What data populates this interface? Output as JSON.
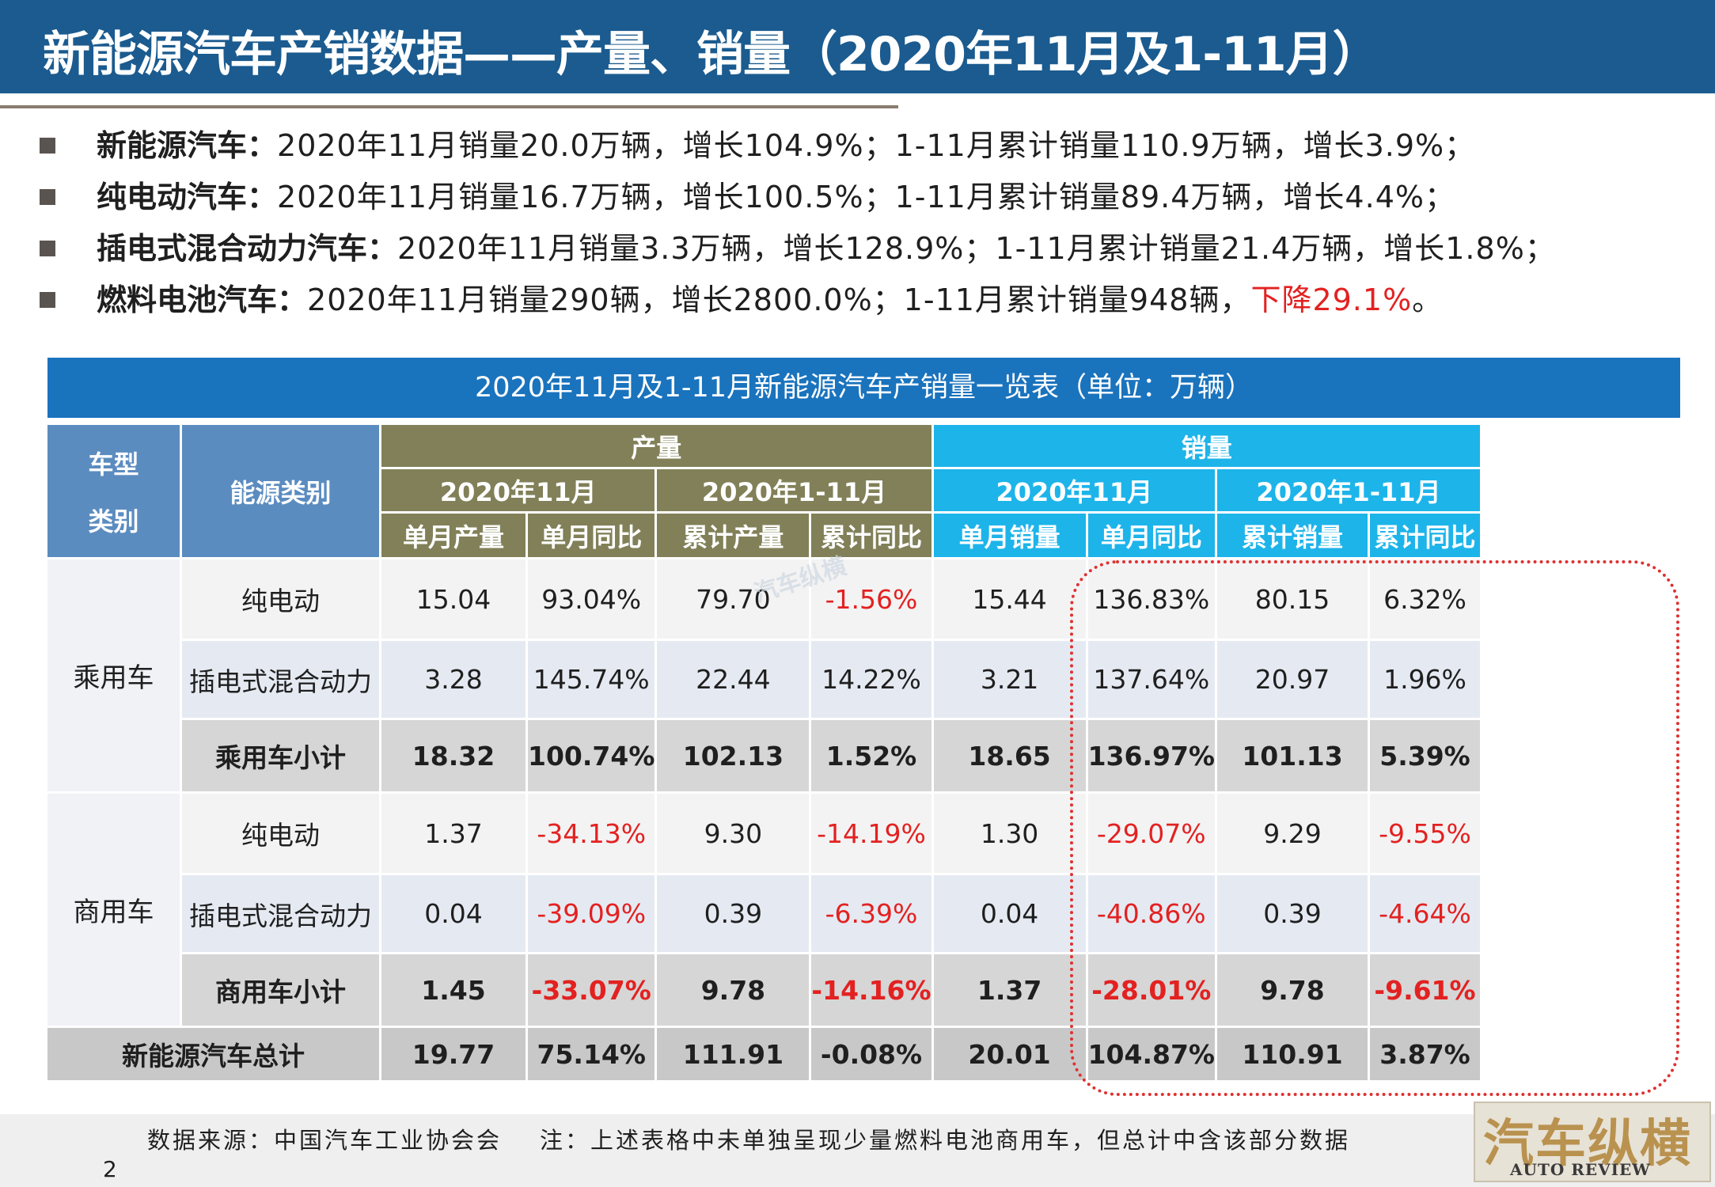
{
  "title": "新能源汽车产销数据——产量、销量（2020年11月及1-11月）",
  "bullets": [
    {
      "label": "新能源汽车：",
      "text": "2020年11月销量20.0万辆，增长104.9%；1-11月累计销量110.9万辆，增长3.9%；",
      "highlight": "",
      "tail": ""
    },
    {
      "label": "纯电动汽车：",
      "text": "2020年11月销量16.7万辆，增长100.5%；1-11月累计销量89.4万辆，增长4.4%；",
      "highlight": "",
      "tail": ""
    },
    {
      "label": "插电式混合动力汽车：",
      "text": "2020年11月销量3.3万辆，增长128.9%；1-11月累计销量21.4万辆，增长1.8%；",
      "highlight": "",
      "tail": ""
    },
    {
      "label": "燃料电池汽车：",
      "text": "2020年11月销量290辆，增长2800.0%；1-11月累计销量948辆，",
      "highlight": "下降29.1%",
      "tail": "。"
    }
  ],
  "table": {
    "caption": "2020年11月及1-11月新能源汽车产销量一览表（单位：万辆）",
    "headers": {
      "vehicle_type": "车型",
      "vehicle_category": "类别",
      "energy": "能源类别",
      "production": "产量",
      "sales": "销量",
      "nov": "2020年11月",
      "ytd": "2020年1-11月",
      "prod_cols": [
        "单月产量",
        "单月同比",
        "累计产量",
        "累计同比"
      ],
      "sales_cols": [
        "单月销量",
        "单月同比",
        "累计销量",
        "累计同比"
      ]
    },
    "groups": [
      {
        "name": "乘用车",
        "rows": [
          {
            "energy": "纯电动",
            "values": [
              "15.04",
              "93.04%",
              "79.70",
              "-1.56%",
              "15.44",
              "136.83%",
              "80.15",
              "6.32%"
            ],
            "neg": [
              false,
              false,
              false,
              true,
              false,
              false,
              false,
              false
            ]
          },
          {
            "energy": "插电式混合动力",
            "values": [
              "3.28",
              "145.74%",
              "22.44",
              "14.22%",
              "3.21",
              "137.64%",
              "20.97",
              "1.96%"
            ],
            "neg": [
              false,
              false,
              false,
              false,
              false,
              false,
              false,
              false
            ]
          },
          {
            "energy": "乘用车小计",
            "values": [
              "18.32",
              "100.74%",
              "102.13",
              "1.52%",
              "18.65",
              "136.97%",
              "101.13",
              "5.39%"
            ],
            "neg": [
              false,
              false,
              false,
              false,
              false,
              false,
              false,
              false
            ]
          }
        ]
      },
      {
        "name": "商用车",
        "rows": [
          {
            "energy": "纯电动",
            "values": [
              "1.37",
              "-34.13%",
              "9.30",
              "-14.19%",
              "1.30",
              "-29.07%",
              "9.29",
              "-9.55%"
            ],
            "neg": [
              false,
              true,
              false,
              true,
              false,
              true,
              false,
              true
            ]
          },
          {
            "energy": "插电式混合动力",
            "values": [
              "0.04",
              "-39.09%",
              "0.39",
              "-6.39%",
              "0.04",
              "-40.86%",
              "0.39",
              "-4.64%"
            ],
            "neg": [
              false,
              true,
              false,
              true,
              false,
              true,
              false,
              true
            ]
          },
          {
            "energy": "商用车小计",
            "values": [
              "1.45",
              "-33.07%",
              "9.78",
              "-14.16%",
              "1.37",
              "-28.01%",
              "9.78",
              "-9.61%"
            ],
            "neg": [
              false,
              true,
              false,
              true,
              false,
              true,
              false,
              true
            ]
          }
        ]
      }
    ],
    "total": {
      "label": "新能源汽车总计",
      "values": [
        "19.77",
        "75.14%",
        "111.91",
        "-0.08%",
        "20.01",
        "104.87%",
        "110.91",
        "3.87%"
      ],
      "neg": [
        false,
        false,
        false,
        false,
        false,
        false,
        false,
        false
      ]
    }
  },
  "watermark": "汽车纵横",
  "footer": {
    "source": "数据来源：中国汽车工业协会会",
    "note": "注：上述表格中未单独呈现少量燃料电池商用车，但总计中含该部分数据",
    "page": "2"
  },
  "logo": {
    "main": "汽车纵横",
    "sub": "AUTO REVIEW"
  },
  "colors": {
    "title_bar": "#1b5b8f",
    "caption": "#1a73bd",
    "production_header": "#818058",
    "sales_header": "#1db4ea",
    "negative": "#e32121",
    "highlight_border": "#e03030"
  }
}
